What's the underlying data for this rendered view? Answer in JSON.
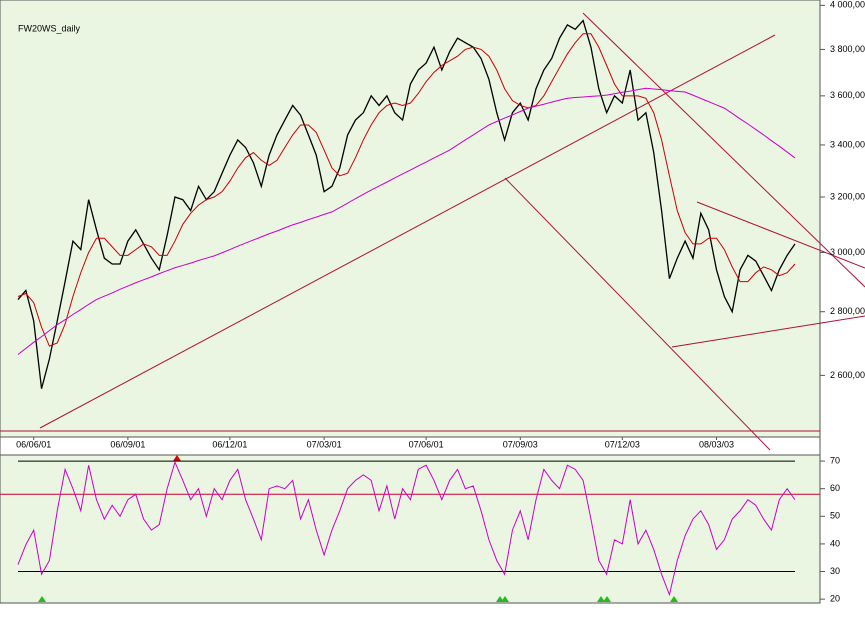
{
  "chart_data": [
    {
      "type": "line",
      "title": "FW20WS_daily",
      "log_scale": true,
      "background": "#eaf5e2",
      "categories": [
        null,
        null,
        "06/06/01",
        null,
        null,
        null,
        null,
        null,
        null,
        null,
        null,
        null,
        null,
        null,
        "06/09/01",
        null,
        null,
        null,
        null,
        null,
        null,
        null,
        null,
        null,
        null,
        null,
        null,
        "06/12/01",
        null,
        null,
        null,
        null,
        null,
        null,
        null,
        null,
        null,
        null,
        null,
        "07/03/01",
        null,
        null,
        null,
        null,
        null,
        null,
        null,
        null,
        null,
        null,
        null,
        null,
        "07/06/01",
        null,
        null,
        null,
        null,
        null,
        null,
        null,
        null,
        null,
        null,
        null,
        "07/09/03",
        null,
        null,
        null,
        null,
        null,
        null,
        null,
        null,
        null,
        null,
        null,
        null,
        "07/12/03",
        null,
        null,
        null,
        null,
        null,
        null,
        null,
        null,
        null,
        null,
        null,
        "08/03/03",
        null,
        null,
        null,
        null,
        null,
        null,
        null,
        null,
        null,
        null
      ],
      "ylim": [
        2420,
        4025
      ],
      "yticks": [
        {
          "value": 2600,
          "label": "2 600,00"
        },
        {
          "value": 2800,
          "label": "2 800,00"
        },
        {
          "value": 3000,
          "label": "3 000,00"
        },
        {
          "value": 3200,
          "label": "3 200,00"
        },
        {
          "value": 3400,
          "label": "3 400,00"
        },
        {
          "value": 3600,
          "label": "3 600,00"
        },
        {
          "value": 3800,
          "label": "3 800,00"
        },
        {
          "value": 4000,
          "label": "4 000,00"
        }
      ],
      "series": [
        {
          "color": "#000000",
          "values": [
            2840,
            2870,
            2770,
            2560,
            2650,
            2770,
            2900,
            3040,
            3010,
            3190,
            3080,
            2980,
            2960,
            2960,
            3040,
            3080,
            3030,
            2980,
            2940,
            3060,
            3200,
            3190,
            3150,
            3240,
            3190,
            3220,
            3290,
            3360,
            3420,
            3390,
            3330,
            3240,
            3360,
            3440,
            3500,
            3560,
            3520,
            3440,
            3360,
            3220,
            3240,
            3310,
            3440,
            3500,
            3530,
            3600,
            3560,
            3600,
            3530,
            3500,
            3650,
            3710,
            3740,
            3810,
            3710,
            3790,
            3850,
            3830,
            3810,
            3760,
            3670,
            3530,
            3420,
            3530,
            3570,
            3500,
            3630,
            3710,
            3760,
            3850,
            3910,
            3890,
            3930,
            3810,
            3630,
            3530,
            3600,
            3570,
            3710,
            3500,
            3530,
            3370,
            3150,
            2910,
            2980,
            3040,
            2980,
            3140,
            3080,
            2940,
            2850,
            2800,
            2940,
            2990,
            2970,
            2920,
            2870,
            2940,
            2990,
            3030
          ]
        },
        {
          "color": "#cc0000",
          "values": [
            2850,
            2860,
            2830,
            2750,
            2690,
            2700,
            2760,
            2850,
            2930,
            3000,
            3050,
            3050,
            3020,
            2990,
            2990,
            3010,
            3030,
            3020,
            2990,
            2990,
            3040,
            3100,
            3140,
            3170,
            3190,
            3200,
            3220,
            3260,
            3310,
            3350,
            3370,
            3340,
            3320,
            3340,
            3390,
            3440,
            3480,
            3480,
            3450,
            3380,
            3310,
            3280,
            3290,
            3350,
            3420,
            3480,
            3530,
            3560,
            3570,
            3560,
            3570,
            3610,
            3660,
            3700,
            3730,
            3750,
            3770,
            3800,
            3810,
            3800,
            3770,
            3710,
            3630,
            3580,
            3560,
            3550,
            3560,
            3600,
            3660,
            3720,
            3780,
            3830,
            3870,
            3870,
            3810,
            3730,
            3650,
            3600,
            3600,
            3600,
            3590,
            3530,
            3420,
            3280,
            3150,
            3070,
            3030,
            3030,
            3050,
            3050,
            3010,
            2950,
            2900,
            2900,
            2930,
            2950,
            2940,
            2920,
            2930,
            2960
          ]
        },
        {
          "color": "#cc00cc",
          "values": [
            2664,
            2683,
            2702,
            2720,
            2739,
            2758,
            2774,
            2791,
            2807,
            2824,
            2840,
            2851,
            2862,
            2874,
            2885,
            2896,
            2906,
            2916,
            2927,
            2937,
            2947,
            2955,
            2963,
            2972,
            2980,
            2988,
            2999,
            3010,
            3022,
            3033,
            3044,
            3055,
            3066,
            3076,
            3087,
            3098,
            3107,
            3117,
            3126,
            3136,
            3145,
            3161,
            3177,
            3194,
            3210,
            3226,
            3241,
            3256,
            3272,
            3287,
            3302,
            3318,
            3333,
            3349,
            3364,
            3380,
            3400,
            3420,
            3440,
            3460,
            3480,
            3494,
            3508,
            3521,
            3535,
            3549,
            3557,
            3565,
            3574,
            3582,
            3590,
            3593,
            3595,
            3598,
            3600,
            3603,
            3609,
            3615,
            3620,
            3626,
            3632,
            3629,
            3626,
            3622,
            3619,
            3616,
            3603,
            3589,
            3576,
            3562,
            3549,
            3527,
            3505,
            3484,
            3462,
            3440,
            3417,
            3395,
            3372,
            3349
          ]
        }
      ]
    },
    {
      "type": "line",
      "ylim": [
        18.6,
        72.2
      ],
      "yticks": [
        20,
        30,
        40,
        50,
        60,
        70
      ],
      "levels": [
        30,
        70
      ],
      "signal_level": 58,
      "signal_color": "#cc0033",
      "series": [
        {
          "color": "#cc00cc",
          "values": [
            32.5,
            39.7,
            45,
            29,
            34,
            52,
            67,
            60,
            52,
            68.5,
            56,
            49,
            54,
            50,
            56,
            58,
            49,
            45,
            47,
            60,
            69.6,
            63,
            56,
            60,
            50,
            60,
            56,
            63,
            67,
            56,
            49,
            41.5,
            60,
            61,
            60,
            63,
            49,
            56,
            45,
            36,
            45,
            52,
            60,
            63,
            65,
            63,
            52,
            61,
            49,
            60,
            56,
            67,
            68.5,
            63,
            56,
            63,
            67,
            60,
            61,
            52,
            41.5,
            34,
            29,
            45,
            52,
            41.5,
            56,
            67,
            63,
            60,
            68.5,
            67,
            63,
            49,
            34,
            29,
            41.5,
            40,
            56,
            40,
            45,
            38,
            29,
            21.6,
            34,
            43,
            49,
            52,
            47,
            38,
            41.5,
            49,
            52,
            56,
            54,
            49,
            45,
            56,
            60,
            56
          ]
        }
      ]
    }
  ]
}
